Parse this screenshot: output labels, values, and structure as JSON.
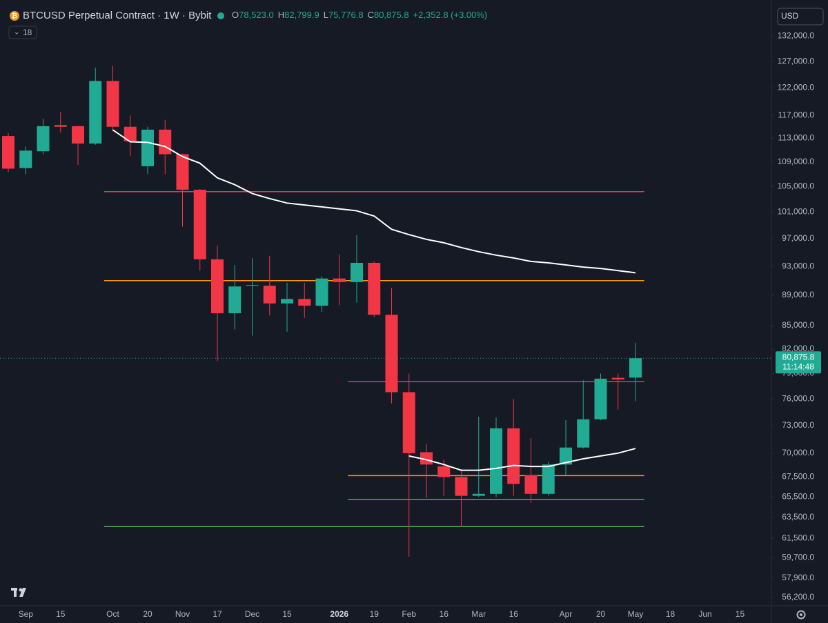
{
  "chart_data": {
    "type": "candlestick",
    "title": "BTCUSD Perpetual Contract · 1W · Bybit",
    "ohlc_legend": [
      {
        "key": "O",
        "value": "78,523.0"
      },
      {
        "key": "H",
        "value": "82,799.9"
      },
      {
        "key": "L",
        "value": "75,776.8"
      },
      {
        "key": "C",
        "value": "80,875.8"
      }
    ],
    "change": "+2,352.8 (+3.00%)",
    "indicator_count": "18",
    "currency": "USD",
    "categories": [
      null,
      "Sep",
      null,
      "15",
      null,
      null,
      "Oct",
      null,
      "20",
      null,
      "Nov",
      null,
      "17",
      null,
      "Dec",
      null,
      "15",
      null,
      null,
      "2026",
      null,
      "19",
      null,
      "Feb",
      null,
      "16",
      null,
      "Mar",
      null,
      "16",
      null,
      null,
      "Apr",
      null,
      "20",
      null,
      "May",
      null,
      "18",
      null,
      "Jun",
      null,
      "15"
    ],
    "open": [
      113400,
      108000,
      110800,
      115300,
      115100,
      112100,
      123300,
      115000,
      108300,
      114500,
      110300,
      104500,
      94000,
      86600,
      90300,
      90300,
      87900,
      88500,
      87600,
      91300,
      90800,
      93500,
      86400,
      76800,
      70100,
      68600,
      67500,
      65600,
      65800,
      72700,
      67700,
      65800,
      68800,
      70600,
      73700,
      78500,
      78523.0,
      null,
      null,
      null,
      null,
      null,
      null
    ],
    "high": [
      113900,
      111600,
      116400,
      117600,
      115200,
      125800,
      126200,
      117000,
      115000,
      116200,
      110400,
      104600,
      96000,
      93200,
      94200,
      94500,
      90700,
      90700,
      91600,
      94700,
      97500,
      93700,
      90000,
      79000,
      71000,
      69300,
      68300,
      74000,
      73900,
      76000,
      71600,
      69100,
      73600,
      78200,
      79000,
      79000,
      82799.9,
      null,
      null,
      null,
      null,
      null,
      null
    ],
    "low": [
      107300,
      107000,
      110300,
      114000,
      108500,
      111900,
      114200,
      110000,
      107000,
      107000,
      98800,
      92400,
      80500,
      84500,
      83700,
      86300,
      84200,
      86000,
      86800,
      87700,
      88000,
      86100,
      75500,
      59800,
      65400,
      65600,
      62600,
      65500,
      65500,
      65600,
      64900,
      65600,
      67700,
      70500,
      73600,
      74800,
      75776.8,
      null,
      null,
      null,
      null,
      null,
      null
    ],
    "close": [
      107900,
      110900,
      115100,
      115000,
      112100,
      123300,
      115000,
      112500,
      114500,
      110300,
      104500,
      94000,
      86600,
      90200,
      90400,
      87900,
      88500,
      87600,
      91300,
      90800,
      93500,
      86400,
      76800,
      70000,
      68800,
      67500,
      65600,
      65800,
      72700,
      66800,
      65800,
      68800,
      70600,
      73700,
      78400,
      78300,
      80875.8,
      null,
      null,
      null,
      null,
      null,
      null
    ],
    "up_color": "#22ab94",
    "down_color": "#f23645",
    "log_scale": true,
    "ylim": [
      55500,
      138000
    ],
    "yticks": [
      {
        "value": 132000,
        "label": "132,000.0"
      },
      {
        "value": 127000,
        "label": "127,000.0"
      },
      {
        "value": 122000,
        "label": "122,000.0"
      },
      {
        "value": 117000,
        "label": "117,000.0"
      },
      {
        "value": 113000,
        "label": "113,000.0"
      },
      {
        "value": 109000,
        "label": "109,000.0"
      },
      {
        "value": 105000,
        "label": "105,000.0"
      },
      {
        "value": 101000,
        "label": "101,000.0"
      },
      {
        "value": 97000,
        "label": "97,000.0"
      },
      {
        "value": 93000,
        "label": "93,000.0"
      },
      {
        "value": 89000,
        "label": "89,000.0"
      },
      {
        "value": 85000,
        "label": "85,000.0"
      },
      {
        "value": 82000,
        "label": "82,000.0"
      },
      {
        "value": 79000,
        "label": "79,000.0"
      },
      {
        "value": 76000,
        "label": "76,000.0"
      },
      {
        "value": 73000,
        "label": "73,000.0"
      },
      {
        "value": 70000,
        "label": "70,000.0"
      },
      {
        "value": 67500,
        "label": "67,500.0"
      },
      {
        "value": 65500,
        "label": "65,500.0"
      },
      {
        "value": 63500,
        "label": "63,500.0"
      },
      {
        "value": 61500,
        "label": "61,500.0"
      },
      {
        "value": 59700,
        "label": "59,700.0"
      },
      {
        "value": 57900,
        "label": "57,900.0"
      },
      {
        "value": 56200,
        "label": "56,200.0"
      }
    ],
    "lines": [
      {
        "color": "#ffffff",
        "values": [
          null,
          null,
          null,
          null,
          null,
          null,
          114450,
          112400,
          112300,
          111600,
          109900,
          108800,
          106400,
          105300,
          103900,
          103100,
          102400,
          102100,
          101800,
          101500,
          101200,
          100400,
          98400,
          97600,
          96900,
          96400,
          95700,
          95100,
          94600,
          94200,
          93700,
          93500,
          93200,
          92900,
          92700,
          92400,
          92100,
          null,
          null,
          null,
          null,
          null,
          null
        ]
      },
      {
        "color": "#ffffff",
        "values": [
          null,
          null,
          null,
          null,
          null,
          null,
          null,
          null,
          null,
          null,
          null,
          null,
          null,
          null,
          null,
          null,
          null,
          null,
          null,
          null,
          null,
          null,
          null,
          69700,
          69300,
          68800,
          68200,
          68200,
          68400,
          68700,
          68600,
          68600,
          69000,
          69400,
          69700,
          70000,
          70500,
          null,
          null,
          null,
          null,
          null,
          null
        ]
      }
    ],
    "levels": [
      {
        "value": 104200,
        "color": "#f23645",
        "start": 5.5,
        "end": 36.5
      },
      {
        "value": 91000,
        "color": "#ff9800",
        "start": 5.5,
        "end": 36.5
      },
      {
        "value": 78050,
        "color": "#f23645",
        "start": 19.5,
        "end": 36.5
      },
      {
        "value": 67650,
        "color": "#ff9800",
        "start": 19.5,
        "end": 36.5
      },
      {
        "value": 65230,
        "color": "#4caf50",
        "start": 19.5,
        "end": 36.5
      },
      {
        "value": 62600,
        "color": "#4caf50",
        "start": 5.5,
        "end": 36.5
      }
    ],
    "last_price": {
      "value": 80875.8,
      "label": "80,875.8"
    },
    "countdown": "11:14:48"
  }
}
